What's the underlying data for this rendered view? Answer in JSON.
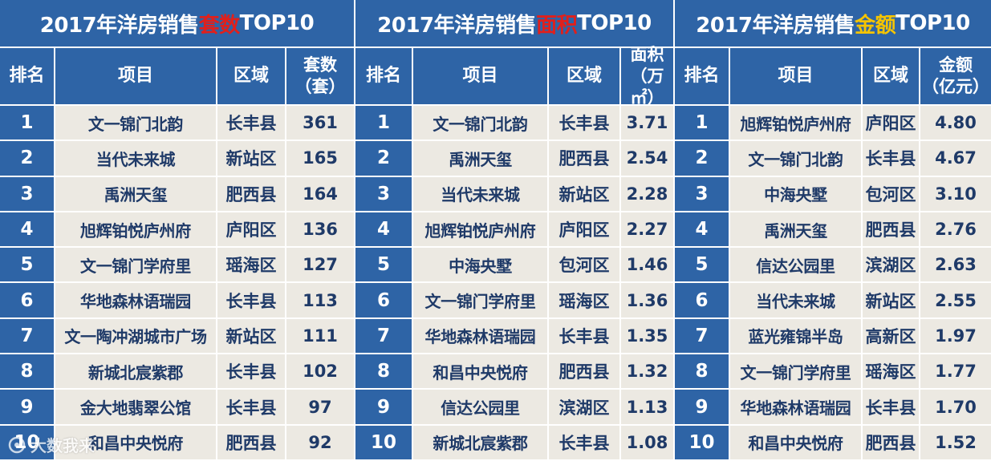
{
  "tables": [
    {
      "title_pre": "2017年洋房销售",
      "title_hl": "套数",
      "title_post": "TOP10",
      "headers": [
        [
          "排名"
        ],
        [
          "项目"
        ],
        [
          "区域"
        ],
        [
          "套数",
          "（套）"
        ]
      ],
      "rows": [
        [
          "1",
          "文一锦门北韵",
          "长丰县",
          "361"
        ],
        [
          "2",
          "当代未来城",
          "新站区",
          "165"
        ],
        [
          "3",
          "禹洲天玺",
          "肥西县",
          "164"
        ],
        [
          "4",
          "旭辉铂悦庐州府",
          "庐阳区",
          "136"
        ],
        [
          "5",
          "文一锦门学府里",
          "瑶海区",
          "127"
        ],
        [
          "6",
          "华地森林语瑞园",
          "长丰县",
          "113"
        ],
        [
          "7",
          "文一陶冲湖城市广场",
          "新站区",
          "111"
        ],
        [
          "8",
          "新城北宸紫郡",
          "长丰县",
          "102"
        ],
        [
          "9",
          "金大地翡翠公馆",
          "长丰县",
          "97"
        ],
        [
          "10",
          "和昌中央悦府",
          "肥西县",
          "92"
        ]
      ]
    },
    {
      "title_pre": "2017年洋房销售",
      "title_hl": "面积",
      "title_post": "TOP10",
      "headers": [
        [
          "排名"
        ],
        [
          "项目"
        ],
        [
          "区域"
        ],
        [
          "面积",
          "（万㎡）"
        ]
      ],
      "rows": [
        [
          "1",
          "文一锦门北韵",
          "长丰县",
          "3.71"
        ],
        [
          "2",
          "禹洲天玺",
          "肥西县",
          "2.54"
        ],
        [
          "3",
          "当代未来城",
          "新站区",
          "2.28"
        ],
        [
          "4",
          "旭辉铂悦庐州府",
          "庐阳区",
          "2.27"
        ],
        [
          "5",
          "中海央墅",
          "包河区",
          "1.46"
        ],
        [
          "6",
          "文一锦门学府里",
          "瑶海区",
          "1.36"
        ],
        [
          "7",
          "华地森林语瑞园",
          "长丰县",
          "1.35"
        ],
        [
          "8",
          "和昌中央悦府",
          "肥西县",
          "1.32"
        ],
        [
          "9",
          "信达公园里",
          "滨湖区",
          "1.13"
        ],
        [
          "10",
          "新城北宸紫郡",
          "长丰县",
          "1.08"
        ]
      ]
    },
    {
      "title_pre": "2017年洋房销售",
      "title_hl": "金额",
      "title_post": "TOP10",
      "headers": [
        [
          "排名"
        ],
        [
          "项目"
        ],
        [
          "区域"
        ],
        [
          "金额",
          "（亿元）"
        ]
      ],
      "rows": [
        [
          "1",
          "旭辉铂悦庐州府",
          "庐阳区",
          "4.80"
        ],
        [
          "2",
          "文一锦门北韵",
          "长丰县",
          "4.67"
        ],
        [
          "3",
          "中海央墅",
          "包河区",
          "3.10"
        ],
        [
          "4",
          "禹洲天玺",
          "肥西县",
          "2.76"
        ],
        [
          "5",
          "信达公园里",
          "滨湖区",
          "2.63"
        ],
        [
          "6",
          "当代未来城",
          "新站区",
          "2.55"
        ],
        [
          "7",
          "蓝光雍锦半岛",
          "高新区",
          "1.97"
        ],
        [
          "8",
          "文一锦门学府里",
          "瑶海区",
          "1.77"
        ],
        [
          "9",
          "华地森林语瑞园",
          "长丰县",
          "1.70"
        ],
        [
          "10",
          "和昌中央悦府",
          "肥西县",
          "1.52"
        ]
      ]
    }
  ],
  "watermark": "大数我来",
  "colors": {
    "header_bg": "#2e64a6",
    "cell_bg": "#ece9e2",
    "cell_text": "#1f3a68",
    "highlight_red": "#e0201c",
    "highlight_yellow": "#f5c400"
  }
}
